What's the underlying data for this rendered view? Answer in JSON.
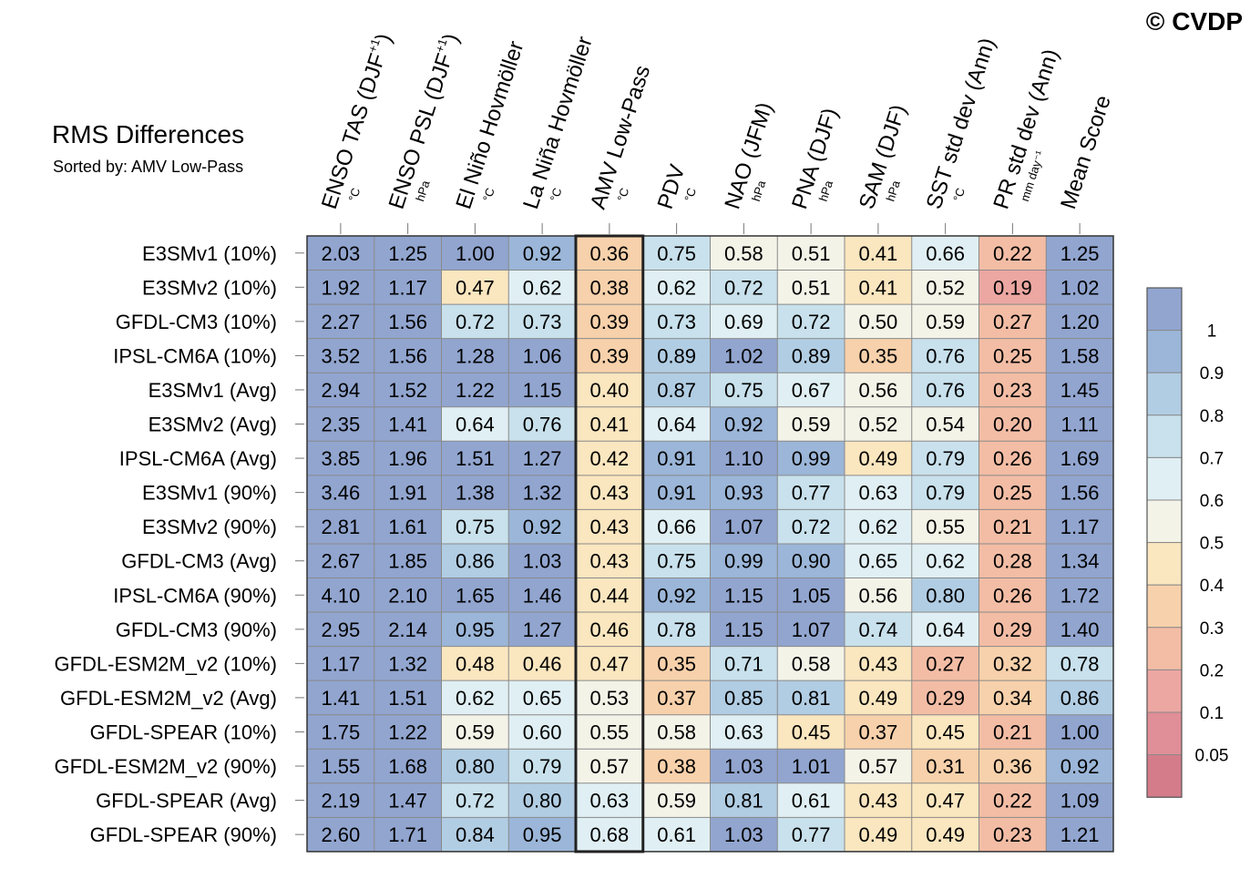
{
  "watermark": "© CVDP",
  "title": "RMS Differences",
  "subtitle": "Sorted by: AMV Low-Pass",
  "chart_data": {
    "type": "heatmap",
    "title": "RMS Differences",
    "subtitle": "Sorted by: AMV Low-Pass",
    "sorted_by": "AMV Low-Pass",
    "highlighted_column": "AMV Low-Pass",
    "columns": [
      {
        "label": "ENSO TAS (DJF",
        "sup": "+1",
        "close": ")",
        "unit": "°C"
      },
      {
        "label": "ENSO PSL (DJF",
        "sup": "+1",
        "close": ")",
        "unit": "hPa"
      },
      {
        "label": "El Niño Hovmöller",
        "sup": "",
        "close": "",
        "unit": "°C"
      },
      {
        "label": "La Niña Hovmöller",
        "sup": "",
        "close": "",
        "unit": "°C"
      },
      {
        "label": "AMV Low-Pass",
        "sup": "",
        "close": "",
        "unit": "°C"
      },
      {
        "label": "PDV",
        "sup": "",
        "close": "",
        "unit": "°C"
      },
      {
        "label": "NAO (JFM)",
        "sup": "",
        "close": "",
        "unit": "hPa"
      },
      {
        "label": "PNA (DJF)",
        "sup": "",
        "close": "",
        "unit": "hPa"
      },
      {
        "label": "SAM (DJF)",
        "sup": "",
        "close": "",
        "unit": "hPa"
      },
      {
        "label": "SST std dev (Ann)",
        "sup": "",
        "close": "",
        "unit": "°C"
      },
      {
        "label": "PR std dev (Ann)",
        "sup": "",
        "close": "",
        "unit": "mm day⁻¹"
      },
      {
        "label": "Mean Score",
        "sup": "",
        "close": "",
        "unit": ""
      }
    ],
    "rows": [
      {
        "name": "E3SMv1 (10%)",
        "values": [
          2.03,
          1.25,
          1.0,
          0.92,
          0.36,
          0.75,
          0.58,
          0.51,
          0.41,
          0.66,
          0.22,
          1.25
        ]
      },
      {
        "name": "E3SMv2 (10%)",
        "values": [
          1.92,
          1.17,
          0.47,
          0.62,
          0.38,
          0.62,
          0.72,
          0.51,
          0.41,
          0.52,
          0.19,
          1.02
        ]
      },
      {
        "name": "GFDL-CM3 (10%)",
        "values": [
          2.27,
          1.56,
          0.72,
          0.73,
          0.39,
          0.73,
          0.69,
          0.72,
          0.5,
          0.59,
          0.27,
          1.2
        ]
      },
      {
        "name": "IPSL-CM6A (10%)",
        "values": [
          3.52,
          1.56,
          1.28,
          1.06,
          0.39,
          0.89,
          1.02,
          0.89,
          0.35,
          0.76,
          0.25,
          1.58
        ]
      },
      {
        "name": "E3SMv1 (Avg)",
        "values": [
          2.94,
          1.52,
          1.22,
          1.15,
          0.4,
          0.87,
          0.75,
          0.67,
          0.56,
          0.76,
          0.23,
          1.45
        ]
      },
      {
        "name": "E3SMv2 (Avg)",
        "values": [
          2.35,
          1.41,
          0.64,
          0.76,
          0.41,
          0.64,
          0.92,
          0.59,
          0.52,
          0.54,
          0.2,
          1.11
        ]
      },
      {
        "name": "IPSL-CM6A (Avg)",
        "values": [
          3.85,
          1.96,
          1.51,
          1.27,
          0.42,
          0.91,
          1.1,
          0.99,
          0.49,
          0.79,
          0.26,
          1.69
        ]
      },
      {
        "name": "E3SMv1 (90%)",
        "values": [
          3.46,
          1.91,
          1.38,
          1.32,
          0.43,
          0.91,
          0.93,
          0.77,
          0.63,
          0.79,
          0.25,
          1.56
        ]
      },
      {
        "name": "E3SMv2 (90%)",
        "values": [
          2.81,
          1.61,
          0.75,
          0.92,
          0.43,
          0.66,
          1.07,
          0.72,
          0.62,
          0.55,
          0.21,
          1.17
        ]
      },
      {
        "name": "GFDL-CM3 (Avg)",
        "values": [
          2.67,
          1.85,
          0.86,
          1.03,
          0.43,
          0.75,
          0.99,
          0.9,
          0.65,
          0.62,
          0.28,
          1.34
        ]
      },
      {
        "name": "IPSL-CM6A (90%)",
        "values": [
          4.1,
          2.1,
          1.65,
          1.46,
          0.44,
          0.92,
          1.15,
          1.05,
          0.56,
          0.8,
          0.26,
          1.72
        ]
      },
      {
        "name": "GFDL-CM3 (90%)",
        "values": [
          2.95,
          2.14,
          0.95,
          1.27,
          0.46,
          0.78,
          1.15,
          1.07,
          0.74,
          0.64,
          0.29,
          1.4
        ]
      },
      {
        "name": "GFDL-ESM2M_v2 (10%)",
        "values": [
          1.17,
          1.32,
          0.48,
          0.46,
          0.47,
          0.35,
          0.71,
          0.58,
          0.43,
          0.27,
          0.32,
          0.78
        ]
      },
      {
        "name": "GFDL-ESM2M_v2 (Avg)",
        "values": [
          1.41,
          1.51,
          0.62,
          0.65,
          0.53,
          0.37,
          0.85,
          0.81,
          0.49,
          0.29,
          0.34,
          0.86
        ]
      },
      {
        "name": "GFDL-SPEAR (10%)",
        "values": [
          1.75,
          1.22,
          0.59,
          0.6,
          0.55,
          0.58,
          0.63,
          0.45,
          0.37,
          0.45,
          0.21,
          1.0
        ]
      },
      {
        "name": "GFDL-ESM2M_v2 (90%)",
        "values": [
          1.55,
          1.68,
          0.8,
          0.79,
          0.57,
          0.38,
          1.03,
          1.01,
          0.57,
          0.31,
          0.36,
          0.92
        ]
      },
      {
        "name": "GFDL-SPEAR (Avg)",
        "values": [
          2.19,
          1.47,
          0.72,
          0.8,
          0.63,
          0.59,
          0.81,
          0.61,
          0.43,
          0.47,
          0.22,
          1.09
        ]
      },
      {
        "name": "GFDL-SPEAR (90%)",
        "values": [
          2.6,
          1.71,
          0.84,
          0.95,
          0.68,
          0.61,
          1.03,
          0.77,
          0.49,
          0.49,
          0.23,
          1.21
        ]
      }
    ],
    "colorbar": {
      "levels": [
        0.05,
        0.1,
        0.2,
        0.3,
        0.4,
        0.5,
        0.6,
        0.7,
        0.8,
        0.9,
        1
      ],
      "labels": [
        "0.05",
        "0.1",
        "0.2",
        "0.3",
        "0.4",
        "0.5",
        "0.6",
        "0.7",
        "0.8",
        "0.9",
        "1"
      ],
      "colors": [
        "#d57c8b",
        "#e08e97",
        "#eca7a2",
        "#f3bda5",
        "#f7d1ab",
        "#fae6bf",
        "#f4f3e8",
        "#e0eff3",
        "#c8e1ec",
        "#b1cde3",
        "#9bb6d8",
        "#91a5cf"
      ]
    }
  }
}
